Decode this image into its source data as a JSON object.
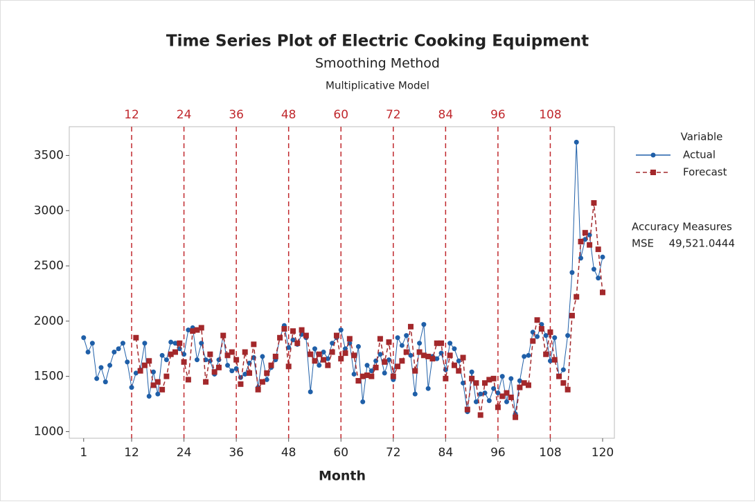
{
  "chart_data": {
    "type": "line",
    "title": "Time Series Plot of Electric Cooking Equipment",
    "subtitle": "Smoothing Method",
    "subtitle2": "Multiplicative Model",
    "xlabel": "Month",
    "x": [
      1,
      2,
      3,
      4,
      5,
      6,
      7,
      8,
      9,
      10,
      11,
      12,
      13,
      14,
      15,
      16,
      17,
      18,
      19,
      20,
      21,
      22,
      23,
      24,
      25,
      26,
      27,
      28,
      29,
      30,
      31,
      32,
      33,
      34,
      35,
      36,
      37,
      38,
      39,
      40,
      41,
      42,
      43,
      44,
      45,
      46,
      47,
      48,
      49,
      50,
      51,
      52,
      53,
      54,
      55,
      56,
      57,
      58,
      59,
      60,
      61,
      62,
      63,
      64,
      65,
      66,
      67,
      68,
      69,
      70,
      71,
      72,
      73,
      74,
      75,
      76,
      77,
      78,
      79,
      80,
      81,
      82,
      83,
      84,
      85,
      86,
      87,
      88,
      89,
      90,
      91,
      92,
      93,
      94,
      95,
      96,
      97,
      98,
      99,
      100,
      101,
      102,
      103,
      104,
      105,
      106,
      107,
      108,
      109,
      110,
      111,
      112,
      113,
      114,
      115,
      116,
      117,
      118,
      119,
      120
    ],
    "series": [
      {
        "name": "Actual",
        "color": "#1f5fa8",
        "marker": "circle",
        "dash": false,
        "values": [
          1850,
          1720,
          1800,
          1480,
          1580,
          1450,
          1600,
          1720,
          1750,
          1800,
          1630,
          1400,
          1530,
          1560,
          1800,
          1320,
          1540,
          1340,
          1690,
          1650,
          1810,
          1800,
          1750,
          1700,
          1920,
          1940,
          1650,
          1800,
          1650,
          1640,
          1520,
          1650,
          1870,
          1600,
          1550,
          1570,
          1490,
          1520,
          1620,
          1670,
          1400,
          1680,
          1470,
          1580,
          1650,
          1850,
          1960,
          1760,
          1830,
          1790,
          1880,
          1850,
          1360,
          1750,
          1600,
          1720,
          1660,
          1800,
          1850,
          1920,
          1750,
          1800,
          1520,
          1770,
          1270,
          1600,
          1550,
          1640,
          1700,
          1530,
          1650,
          1470,
          1850,
          1780,
          1870,
          1690,
          1340,
          1800,
          1970,
          1390,
          1680,
          1660,
          1710,
          1560,
          1800,
          1750,
          1640,
          1440,
          1180,
          1540,
          1270,
          1340,
          1350,
          1280,
          1390,
          1350,
          1500,
          1270,
          1480,
          1160,
          1460,
          1680,
          1690,
          1900,
          1860,
          1970,
          1870,
          1640,
          1850,
          1500,
          1560,
          1870,
          2440,
          3620,
          2570,
          2740,
          2780,
          2470,
          2390,
          2580
        ]
      },
      {
        "name": "Forecast",
        "color": "#a3282b",
        "marker": "square",
        "dash": true,
        "values": [
          null,
          null,
          null,
          null,
          null,
          null,
          null,
          null,
          null,
          null,
          null,
          null,
          1850,
          1550,
          1600,
          1640,
          1420,
          1450,
          1380,
          1500,
          1700,
          1720,
          1800,
          1630,
          1470,
          1910,
          1920,
          1940,
          1450,
          1700,
          1540,
          1580,
          1870,
          1690,
          1720,
          1650,
          1430,
          1720,
          1530,
          1790,
          1380,
          1450,
          1530,
          1600,
          1680,
          1850,
          1930,
          1590,
          1910,
          1800,
          1920,
          1870,
          1700,
          1640,
          1700,
          1650,
          1600,
          1720,
          1870,
          1660,
          1710,
          1840,
          1690,
          1460,
          1500,
          1510,
          1500,
          1580,
          1840,
          1630,
          1810,
          1500,
          1590,
          1640,
          1720,
          1950,
          1550,
          1720,
          1690,
          1680,
          1660,
          1800,
          1800,
          1480,
          1690,
          1600,
          1550,
          1670,
          1200,
          1480,
          1440,
          1150,
          1440,
          1470,
          1480,
          1220,
          1320,
          1350,
          1310,
          1130,
          1400,
          1440,
          1420,
          1820,
          2010,
          1930,
          1700,
          1900,
          1650,
          1500,
          1440,
          1380,
          2050,
          2220,
          2720,
          2800,
          2690,
          3070,
          2650,
          2260
        ]
      }
    ],
    "xlim": [
      -2.3,
      122.7
    ],
    "ylim": [
      940,
      3760
    ],
    "xticks": [
      1,
      12,
      24,
      36,
      48,
      60,
      72,
      84,
      96,
      108,
      120
    ],
    "yticks": [
      1000,
      1500,
      2000,
      2500,
      3000,
      3500
    ],
    "vlines": [
      12,
      24,
      36,
      48,
      60,
      72,
      84,
      96,
      108
    ],
    "vline_color": "#c0282d",
    "legend_title": "Variable",
    "accuracy_title": "Accuracy Measures",
    "accuracy_name": "MSE",
    "accuracy_value": "49,521.0444"
  }
}
